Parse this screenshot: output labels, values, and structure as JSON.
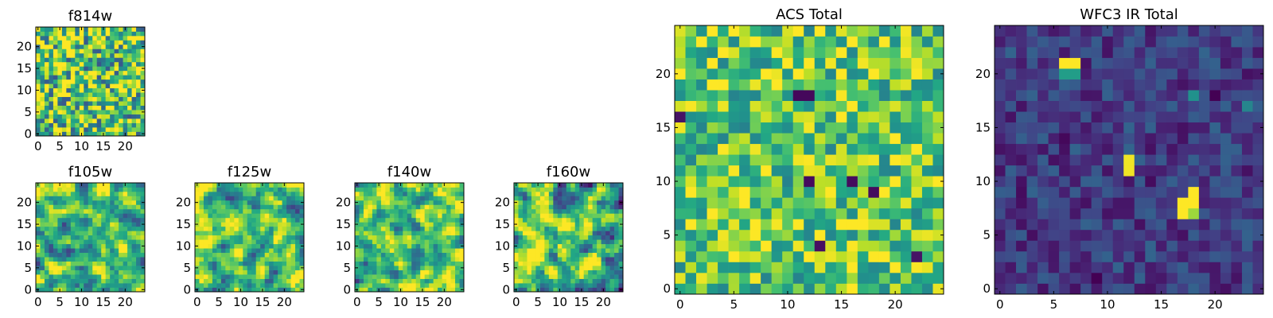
{
  "chart_data": [
    {
      "type": "heatmap",
      "title": "f814w",
      "grid_size": 25,
      "colormap": "viridis",
      "xticks": [
        0,
        5,
        10,
        15,
        20
      ],
      "yticks": [
        0,
        5,
        10,
        15,
        20
      ],
      "xlim": [
        -0.5,
        24.5
      ],
      "ylim": [
        -0.5,
        24.5
      ],
      "value_range": [
        0,
        1
      ],
      "pattern": "noise",
      "base_level": 0.72,
      "noise_level": 0.45,
      "seed": 11,
      "hotspots": []
    },
    {
      "type": "heatmap",
      "title": "f105w",
      "grid_size": 25,
      "colormap": "viridis",
      "xticks": [
        0,
        5,
        10,
        15,
        20
      ],
      "yticks": [
        0,
        5,
        10,
        15,
        20
      ],
      "xlim": [
        -0.5,
        24.5
      ],
      "ylim": [
        -0.5,
        24.5
      ],
      "value_range": [
        0,
        1
      ],
      "pattern": "smooth",
      "base_level": 0.68,
      "noise_level": 0.42,
      "seed": 23,
      "hotspots": []
    },
    {
      "type": "heatmap",
      "title": "f125w",
      "grid_size": 25,
      "colormap": "viridis",
      "xticks": [
        0,
        5,
        10,
        15,
        20
      ],
      "yticks": [
        0,
        5,
        10,
        15,
        20
      ],
      "xlim": [
        -0.5,
        24.5
      ],
      "ylim": [
        -0.5,
        24.5
      ],
      "value_range": [
        0,
        1
      ],
      "pattern": "smooth",
      "base_level": 0.7,
      "noise_level": 0.42,
      "seed": 37,
      "hotspots": []
    },
    {
      "type": "heatmap",
      "title": "f140w",
      "grid_size": 25,
      "colormap": "viridis",
      "xticks": [
        0,
        5,
        10,
        15,
        20
      ],
      "yticks": [
        0,
        5,
        10,
        15,
        20
      ],
      "xlim": [
        -0.5,
        24.5
      ],
      "ylim": [
        -0.5,
        24.5
      ],
      "value_range": [
        0,
        1
      ],
      "pattern": "smooth",
      "base_level": 0.72,
      "noise_level": 0.42,
      "seed": 41,
      "hotspots": []
    },
    {
      "type": "heatmap",
      "title": "f160w",
      "grid_size": 25,
      "colormap": "viridis",
      "xticks": [
        0,
        5,
        10,
        15,
        20
      ],
      "yticks": [
        0,
        5,
        10,
        15,
        20
      ],
      "xlim": [
        -0.5,
        24.5
      ],
      "ylim": [
        -0.5,
        24.5
      ],
      "value_range": [
        0,
        1
      ],
      "pattern": "smooth",
      "base_level": 0.7,
      "noise_level": 0.45,
      "seed": 53,
      "hotspots": []
    },
    {
      "type": "heatmap",
      "title": "ACS Total",
      "grid_size": 25,
      "colormap": "viridis",
      "xticks": [
        0,
        5,
        10,
        15,
        20
      ],
      "yticks": [
        0,
        5,
        10,
        15,
        20
      ],
      "xlim": [
        -0.5,
        24.5
      ],
      "ylim": [
        -0.5,
        24.5
      ],
      "value_range": [
        0,
        1
      ],
      "pattern": "noise",
      "base_level": 0.74,
      "noise_level": 0.3,
      "seed": 67,
      "hotspots": [
        {
          "x": 11,
          "y": 18,
          "value": 0.02
        },
        {
          "x": 12,
          "y": 18,
          "value": 0.02
        },
        {
          "x": 12,
          "y": 10,
          "value": 0.03
        },
        {
          "x": 16,
          "y": 10,
          "value": 0.03
        },
        {
          "x": 18,
          "y": 9,
          "value": 0.03
        },
        {
          "x": 13,
          "y": 4,
          "value": 0.04
        },
        {
          "x": 22,
          "y": 3,
          "value": 0.05
        },
        {
          "x": 0,
          "y": 16,
          "value": 0.05
        },
        {
          "x": 18,
          "y": 12,
          "value": 0.98
        },
        {
          "x": 17,
          "y": 12,
          "value": 0.96
        },
        {
          "x": 23,
          "y": 5,
          "value": 0.97
        },
        {
          "x": 2,
          "y": 1,
          "value": 0.97
        }
      ]
    },
    {
      "type": "heatmap",
      "title": "WFC3 IR Total",
      "grid_size": 25,
      "colormap": "viridis",
      "xticks": [
        0,
        5,
        10,
        15,
        20
      ],
      "yticks": [
        0,
        5,
        10,
        15,
        20
      ],
      "xlim": [
        -0.5,
        24.5
      ],
      "ylim": [
        -0.5,
        24.5
      ],
      "value_range": [
        0,
        1
      ],
      "pattern": "noise",
      "base_level": 0.18,
      "noise_level": 0.14,
      "seed": 79,
      "hotspots": [
        {
          "x": 6,
          "y": 21,
          "value": 1.0
        },
        {
          "x": 7,
          "y": 21,
          "value": 1.0
        },
        {
          "x": 6,
          "y": 20,
          "value": 0.55
        },
        {
          "x": 7,
          "y": 20,
          "value": 0.55
        },
        {
          "x": 12,
          "y": 12,
          "value": 0.98
        },
        {
          "x": 12,
          "y": 11,
          "value": 0.98
        },
        {
          "x": 18,
          "y": 9,
          "value": 1.0
        },
        {
          "x": 17,
          "y": 8,
          "value": 1.0
        },
        {
          "x": 18,
          "y": 8,
          "value": 1.0
        },
        {
          "x": 17,
          "y": 7,
          "value": 1.0
        },
        {
          "x": 18,
          "y": 7,
          "value": 0.85
        },
        {
          "x": 18,
          "y": 18,
          "value": 0.5
        },
        {
          "x": 23,
          "y": 17,
          "value": 0.45
        },
        {
          "x": 9,
          "y": 1,
          "value": 0.0
        },
        {
          "x": 20,
          "y": 18,
          "value": 0.0
        },
        {
          "x": 6,
          "y": 14,
          "value": 0.02
        },
        {
          "x": 2,
          "y": 9,
          "value": 0.03
        },
        {
          "x": 14,
          "y": 10,
          "value": 0.03
        }
      ]
    }
  ]
}
